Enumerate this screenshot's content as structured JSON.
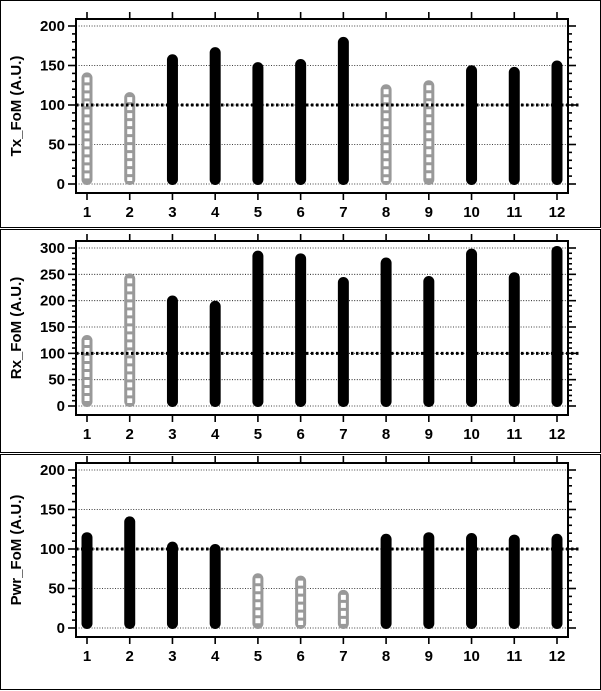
{
  "chart_data": [
    {
      "type": "bar",
      "ylabel": "Tx_FoM (A.U.)",
      "ylim": [
        0,
        200
      ],
      "yticks": [
        0,
        50,
        100,
        150,
        200
      ],
      "categories": [
        "1",
        "2",
        "3",
        "4",
        "5",
        "6",
        "7",
        "8",
        "9",
        "10",
        "11",
        "12"
      ],
      "values": [
        140,
        115,
        163,
        172,
        153,
        157,
        185,
        125,
        130,
        149,
        147,
        155
      ],
      "reference_line": 100,
      "grid": true,
      "highlight_style": [
        "hollow",
        "hollow",
        "solid",
        "solid",
        "solid",
        "solid",
        "solid",
        "hollow",
        "hollow",
        "solid",
        "solid",
        "solid"
      ],
      "colors": {
        "solid": "#000000",
        "hollow": "#999999"
      }
    },
    {
      "type": "bar",
      "ylabel": "Rx_FoM (A.U.)",
      "ylim": [
        0,
        300
      ],
      "yticks": [
        0,
        50,
        100,
        150,
        200,
        250,
        300
      ],
      "categories": [
        "1",
        "2",
        "3",
        "4",
        "5",
        "6",
        "7",
        "8",
        "9",
        "10",
        "11",
        "12"
      ],
      "values": [
        133,
        250,
        208,
        198,
        293,
        288,
        243,
        280,
        245,
        297,
        252,
        302
      ],
      "reference_line": 100,
      "grid": true,
      "highlight_style": [
        "hollow",
        "hollow",
        "solid",
        "solid",
        "solid",
        "solid",
        "solid",
        "solid",
        "solid",
        "solid",
        "solid",
        "solid"
      ],
      "colors": {
        "solid": "#000000",
        "hollow": "#999999"
      }
    },
    {
      "type": "bar",
      "ylabel": "Pwr_FoM (A.U.)",
      "ylim": [
        0,
        200
      ],
      "yticks": [
        0,
        50,
        100,
        150,
        200
      ],
      "categories": [
        "1",
        "2",
        "3",
        "4",
        "5",
        "6",
        "7",
        "8",
        "9",
        "10",
        "11",
        "12"
      ],
      "values": [
        120,
        140,
        108,
        105,
        68,
        65,
        47,
        118,
        120,
        119,
        117,
        118
      ],
      "reference_line": 100,
      "grid": true,
      "highlight_style": [
        "solid",
        "solid",
        "solid",
        "solid",
        "hollow",
        "hollow",
        "hollow",
        "solid",
        "solid",
        "solid",
        "solid",
        "solid"
      ],
      "colors": {
        "solid": "#000000",
        "hollow": "#999999"
      }
    }
  ]
}
